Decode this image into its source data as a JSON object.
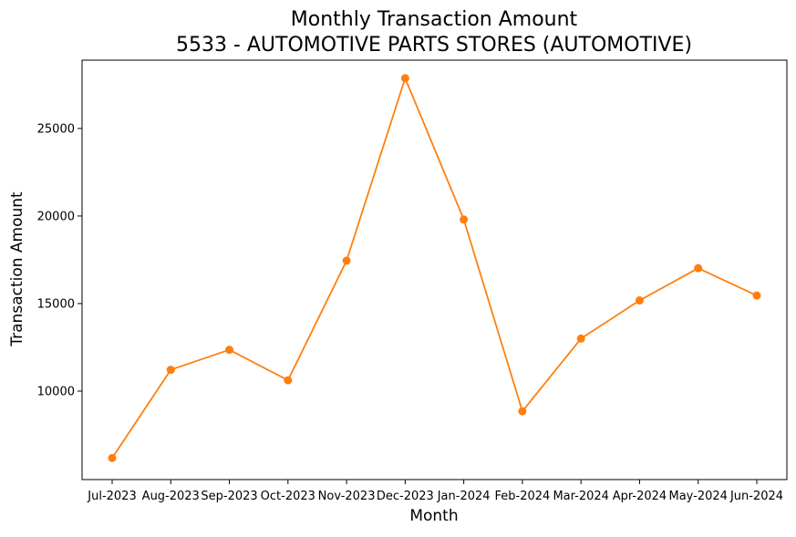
{
  "chart_data": {
    "type": "line",
    "title": "Monthly Transaction Amount",
    "subtitle": "5533 - AUTOMOTIVE PARTS STORES (AUTOMOTIVE)",
    "xlabel": "Month",
    "ylabel": "Transaction Amount",
    "categories": [
      "Jul-2023",
      "Aug-2023",
      "Sep-2023",
      "Oct-2023",
      "Nov-2023",
      "Dec-2023",
      "Jan-2024",
      "Feb-2024",
      "Mar-2024",
      "Apr-2024",
      "May-2024",
      "Jun-2024"
    ],
    "values": [
      6180,
      11220,
      12360,
      10620,
      17450,
      27870,
      19800,
      8850,
      13000,
      15180,
      17020,
      15460
    ],
    "ylim": [
      4950,
      28900
    ],
    "yticks": [
      10000,
      15000,
      20000,
      25000
    ],
    "ytick_labels": [
      "10000",
      "15000",
      "20000",
      "25000"
    ],
    "grid": false,
    "legend": "none",
    "color": "#ff7f0e"
  }
}
